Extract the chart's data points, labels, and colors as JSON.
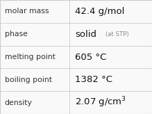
{
  "rows": [
    {
      "label": "molar mass",
      "value": "42.4 g/mol",
      "value_extra": null,
      "value_super": null
    },
    {
      "label": "phase",
      "value": "solid",
      "value_extra": " (at STP)",
      "value_super": null
    },
    {
      "label": "melting point",
      "value": "605 °C",
      "value_extra": null,
      "value_super": null
    },
    {
      "label": "boiling point",
      "value": "1382 °C",
      "value_extra": null,
      "value_super": null
    },
    {
      "label": "density",
      "value": "2.07 g/cm$^3$",
      "value_extra": null,
      "value_super": null
    }
  ],
  "col_split": 0.455,
  "bg_color": "#f9f9f9",
  "grid_color": "#cccccc",
  "label_color": "#333333",
  "value_color": "#111111",
  "extra_color": "#888888",
  "label_fontsize": 7.8,
  "value_fontsize": 9.5,
  "extra_fontsize": 6.2
}
